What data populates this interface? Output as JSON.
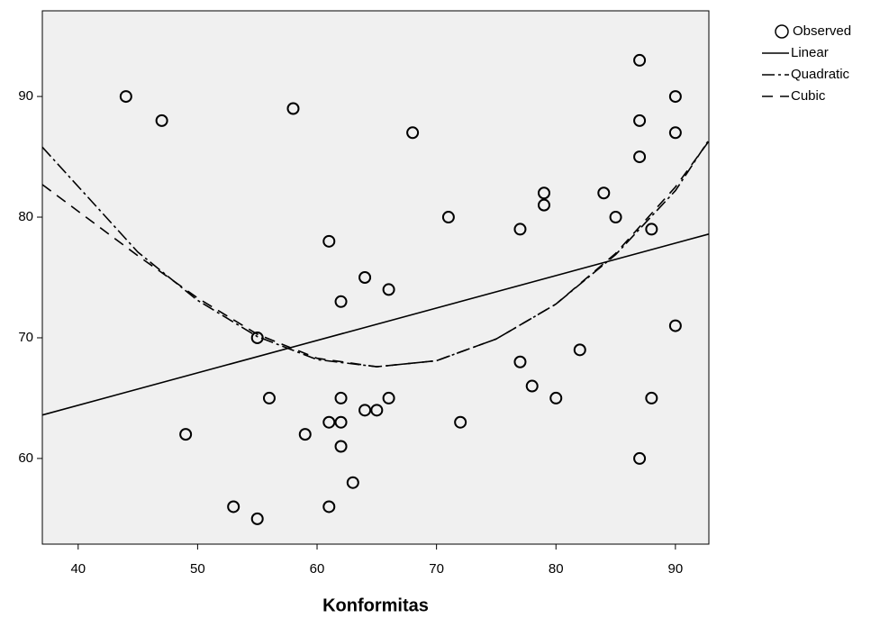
{
  "chart_data": {
    "type": "scatter",
    "x_label": "Konformitas",
    "xlim": [
      37,
      92.8
    ],
    "ylim": [
      52.9,
      97.1
    ],
    "xticks": [
      40,
      50,
      60,
      70,
      80,
      90
    ],
    "yticks": [
      60,
      70,
      80,
      90
    ],
    "grid": false,
    "legend": "right",
    "series": [
      {
        "name": "Observed",
        "color": "#000000",
        "marker": "circle",
        "x": [
          44,
          47,
          58,
          68,
          87,
          90,
          87,
          90,
          87,
          79,
          84,
          79,
          71,
          85,
          77,
          88,
          61,
          64,
          66,
          62,
          55,
          90,
          82,
          77,
          78,
          56,
          62,
          66,
          80,
          88,
          64,
          65,
          61,
          62,
          72,
          49,
          59,
          62,
          87,
          63,
          53,
          61,
          55
        ],
        "values": [
          90,
          88,
          89,
          87,
          93,
          90,
          88,
          87,
          85,
          82,
          82,
          81,
          80,
          80,
          79,
          79,
          78,
          75,
          74,
          73,
          70,
          71,
          69,
          68,
          66,
          65,
          65,
          65,
          65,
          65,
          64,
          64,
          63,
          63,
          63,
          62,
          62,
          61,
          60,
          58,
          56,
          56,
          55
        ]
      },
      {
        "name": "Linear",
        "color": "#000000",
        "dash": "solid",
        "x": [
          37,
          92.8
        ],
        "values": [
          63.6,
          78.6
        ]
      },
      {
        "name": "Quadratic",
        "color": "#000000",
        "dash": "dash-dot",
        "x": [
          37,
          45,
          50,
          55,
          60,
          65,
          70,
          75,
          80,
          85,
          90,
          92.8
        ],
        "values": [
          85.8,
          77.1,
          73.1,
          70.1,
          68.2,
          67.6,
          68.1,
          69.9,
          72.8,
          76.9,
          82.2,
          86.4
        ]
      },
      {
        "name": "Cubic",
        "color": "#000000",
        "dash": "dash",
        "x": [
          37,
          45,
          50,
          55,
          60,
          65,
          70,
          75,
          80,
          85,
          90,
          92.8
        ],
        "values": [
          82.7,
          76.8,
          73.3,
          70.3,
          68.3,
          67.6,
          68.1,
          69.9,
          72.8,
          77.0,
          82.5,
          86.3
        ]
      }
    ]
  }
}
